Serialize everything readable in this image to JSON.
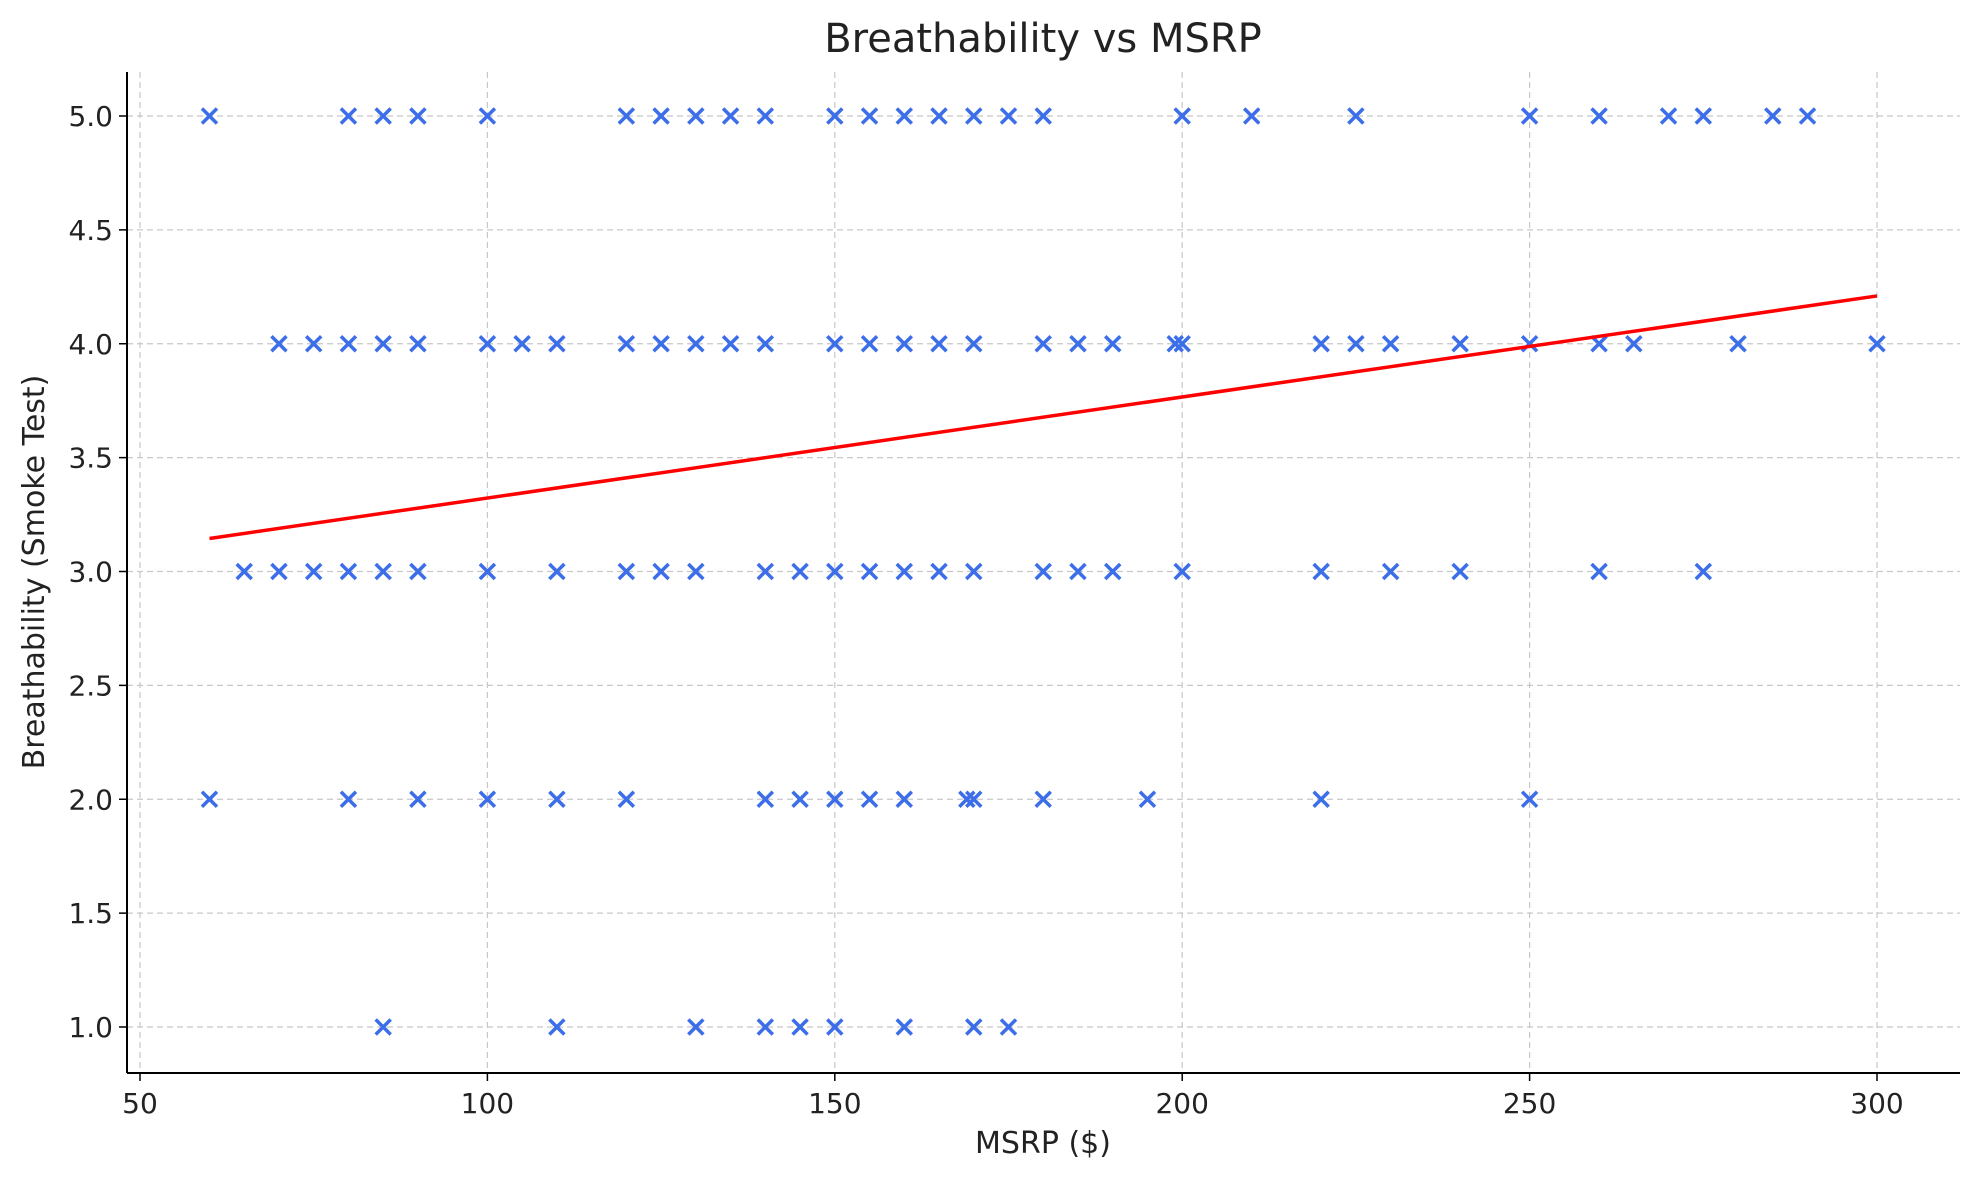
{
  "chart_data": {
    "type": "scatter",
    "title": "Breathability vs MSRP",
    "xlabel": "MSRP ($)",
    "ylabel": "Breathability (Smoke Test)",
    "xlim": [
      48,
      312
    ],
    "ylim": [
      0.8,
      5.2
    ],
    "xticks": [
      50,
      100,
      150,
      200,
      250,
      300
    ],
    "yticks": [
      1.0,
      1.5,
      2.0,
      2.5,
      3.0,
      3.5,
      4.0,
      4.5,
      5.0
    ],
    "grid": true,
    "marker": "x",
    "colors": {
      "points": "#3b6ee8",
      "trend": "#ff0000",
      "grid": "#c8c8c8"
    },
    "points_by_y": {
      "5": [
        60,
        80,
        85,
        90,
        100,
        120,
        125,
        130,
        135,
        140,
        150,
        155,
        160,
        165,
        170,
        175,
        180,
        200,
        210,
        225,
        250,
        260,
        270,
        275,
        285,
        290
      ],
      "4": [
        70,
        75,
        80,
        85,
        90,
        100,
        105,
        110,
        120,
        125,
        130,
        135,
        140,
        150,
        155,
        160,
        165,
        170,
        180,
        185,
        190,
        199,
        200,
        220,
        225,
        230,
        240,
        250,
        260,
        265,
        280,
        300
      ],
      "3": [
        65,
        70,
        75,
        80,
        85,
        90,
        100,
        110,
        120,
        125,
        130,
        140,
        145,
        150,
        155,
        160,
        165,
        170,
        180,
        185,
        190,
        200,
        220,
        230,
        240,
        260,
        275
      ],
      "2": [
        60,
        80,
        90,
        100,
        110,
        120,
        140,
        145,
        150,
        155,
        160,
        169,
        170,
        180,
        195,
        220,
        250
      ],
      "1": [
        85,
        110,
        130,
        140,
        145,
        150,
        160,
        170,
        175
      ]
    },
    "trend_line": {
      "x": [
        60,
        300
      ],
      "y": [
        3.145,
        4.21
      ]
    }
  }
}
